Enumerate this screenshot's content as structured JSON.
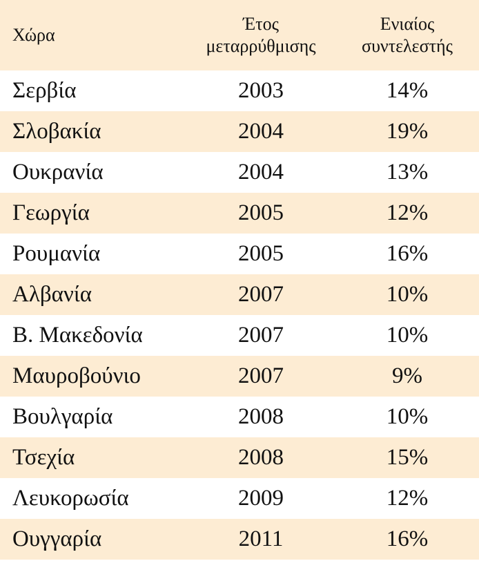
{
  "table": {
    "header": [
      "Χώρα",
      "Έτος μεταρρύθμισης",
      "Ενιαίος συντελεστής"
    ],
    "rows": [
      [
        "Σερβία",
        "2003",
        "14%"
      ],
      [
        "Σλοβακία",
        "2004",
        "19%"
      ],
      [
        "Ουκρανία",
        "2004",
        "13%"
      ],
      [
        "Γεωργία",
        "2005",
        "12%"
      ],
      [
        "Ρουμανία",
        "2005",
        "16%"
      ],
      [
        "Αλβανία",
        "2007",
        "10%"
      ],
      [
        "Β. Μακεδονία",
        "2007",
        "10%"
      ],
      [
        "Μαυροβούνιο",
        "2007",
        "9%"
      ],
      [
        "Βουλγαρία",
        "2008",
        "10%"
      ],
      [
        "Τσεχία",
        "2008",
        "15%"
      ],
      [
        "Λευκορωσία",
        "2009",
        "12%"
      ],
      [
        "Ουγγαρία",
        "2011",
        "16%"
      ]
    ]
  }
}
